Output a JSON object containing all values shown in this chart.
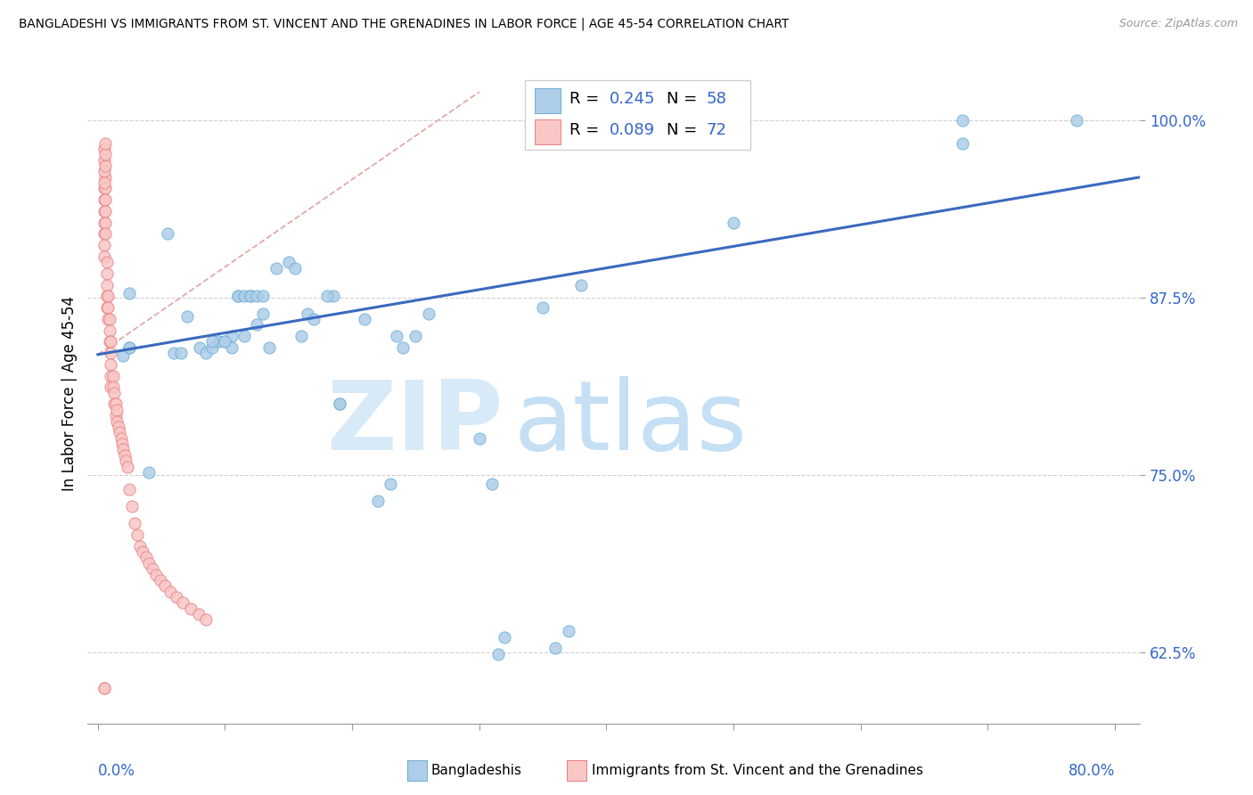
{
  "title": "BANGLADESHI VS IMMIGRANTS FROM ST. VINCENT AND THE GRENADINES IN LABOR FORCE | AGE 45-54 CORRELATION CHART",
  "source": "Source: ZipAtlas.com",
  "ylabel_ticks": [
    0.625,
    0.75,
    0.875,
    1.0
  ],
  "ylabel_labels": [
    "62.5%",
    "75.0%",
    "87.5%",
    "100.0%"
  ],
  "ylabel_title": "In Labor Force | Age 45-54",
  "xlim": [
    -0.008,
    0.82
  ],
  "ylim": [
    0.575,
    1.04
  ],
  "legend_r1": "0.245",
  "legend_n1": "58",
  "legend_r2": "0.089",
  "legend_n2": "72",
  "blue_color": "#aecde8",
  "blue_edge": "#6aaed6",
  "pink_color": "#f9c6c6",
  "pink_edge": "#e88080",
  "trend_blue": "#3a6abf",
  "trend_pink": "#e0a0a0",
  "blue_x": [
    0.02,
    0.025,
    0.04,
    0.055,
    0.06,
    0.065,
    0.07,
    0.08,
    0.085,
    0.09,
    0.095,
    0.1,
    0.105,
    0.105,
    0.11,
    0.11,
    0.115,
    0.115,
    0.12,
    0.12,
    0.125,
    0.125,
    0.13,
    0.135,
    0.14,
    0.15,
    0.155,
    0.16,
    0.165,
    0.17,
    0.185,
    0.19,
    0.21,
    0.22,
    0.23,
    0.235,
    0.24,
    0.25,
    0.26,
    0.3,
    0.31,
    0.315,
    0.32,
    0.35,
    0.36,
    0.37,
    0.38,
    0.5,
    0.68,
    0.68,
    0.77,
    0.025,
    0.025,
    0.09,
    0.1,
    0.13,
    0.18,
    0.19
  ],
  "blue_y": [
    0.834,
    0.878,
    0.752,
    0.92,
    0.836,
    0.836,
    0.862,
    0.84,
    0.836,
    0.84,
    0.844,
    0.844,
    0.848,
    0.84,
    0.876,
    0.876,
    0.848,
    0.876,
    0.876,
    0.876,
    0.876,
    0.856,
    0.864,
    0.84,
    0.896,
    0.9,
    0.896,
    0.848,
    0.864,
    0.86,
    0.876,
    0.8,
    0.86,
    0.732,
    0.744,
    0.848,
    0.84,
    0.848,
    0.864,
    0.776,
    0.744,
    0.624,
    0.636,
    0.868,
    0.628,
    0.64,
    0.884,
    0.928,
    0.984,
    1.0,
    1.0,
    0.84,
    0.84,
    0.844,
    0.844,
    0.876,
    0.876,
    0.8
  ],
  "pink_x": [
    0.005,
    0.005,
    0.005,
    0.005,
    0.005,
    0.005,
    0.005,
    0.005,
    0.006,
    0.006,
    0.006,
    0.006,
    0.006,
    0.006,
    0.007,
    0.007,
    0.007,
    0.007,
    0.007,
    0.008,
    0.008,
    0.008,
    0.009,
    0.009,
    0.009,
    0.01,
    0.01,
    0.01,
    0.01,
    0.01,
    0.012,
    0.012,
    0.013,
    0.013,
    0.014,
    0.014,
    0.015,
    0.015,
    0.016,
    0.017,
    0.018,
    0.019,
    0.02,
    0.021,
    0.022,
    0.023,
    0.025,
    0.027,
    0.029,
    0.031,
    0.033,
    0.035,
    0.038,
    0.04,
    0.043,
    0.046,
    0.049,
    0.053,
    0.057,
    0.062,
    0.067,
    0.073,
    0.079,
    0.085,
    0.005,
    0.005,
    0.005,
    0.005,
    0.005,
    0.006,
    0.006,
    0.006
  ],
  "pink_y": [
    0.952,
    0.944,
    0.936,
    0.928,
    0.92,
    0.912,
    0.904,
    0.6,
    0.96,
    0.952,
    0.944,
    0.936,
    0.928,
    0.92,
    0.9,
    0.892,
    0.884,
    0.876,
    0.868,
    0.876,
    0.868,
    0.86,
    0.86,
    0.852,
    0.844,
    0.844,
    0.836,
    0.828,
    0.82,
    0.812,
    0.82,
    0.812,
    0.808,
    0.8,
    0.8,
    0.792,
    0.796,
    0.788,
    0.784,
    0.78,
    0.776,
    0.772,
    0.768,
    0.764,
    0.76,
    0.756,
    0.74,
    0.728,
    0.716,
    0.708,
    0.7,
    0.696,
    0.692,
    0.688,
    0.684,
    0.68,
    0.676,
    0.672,
    0.668,
    0.664,
    0.66,
    0.656,
    0.652,
    0.648,
    0.98,
    0.972,
    0.964,
    0.956,
    0.6,
    0.968,
    0.976,
    0.984
  ]
}
